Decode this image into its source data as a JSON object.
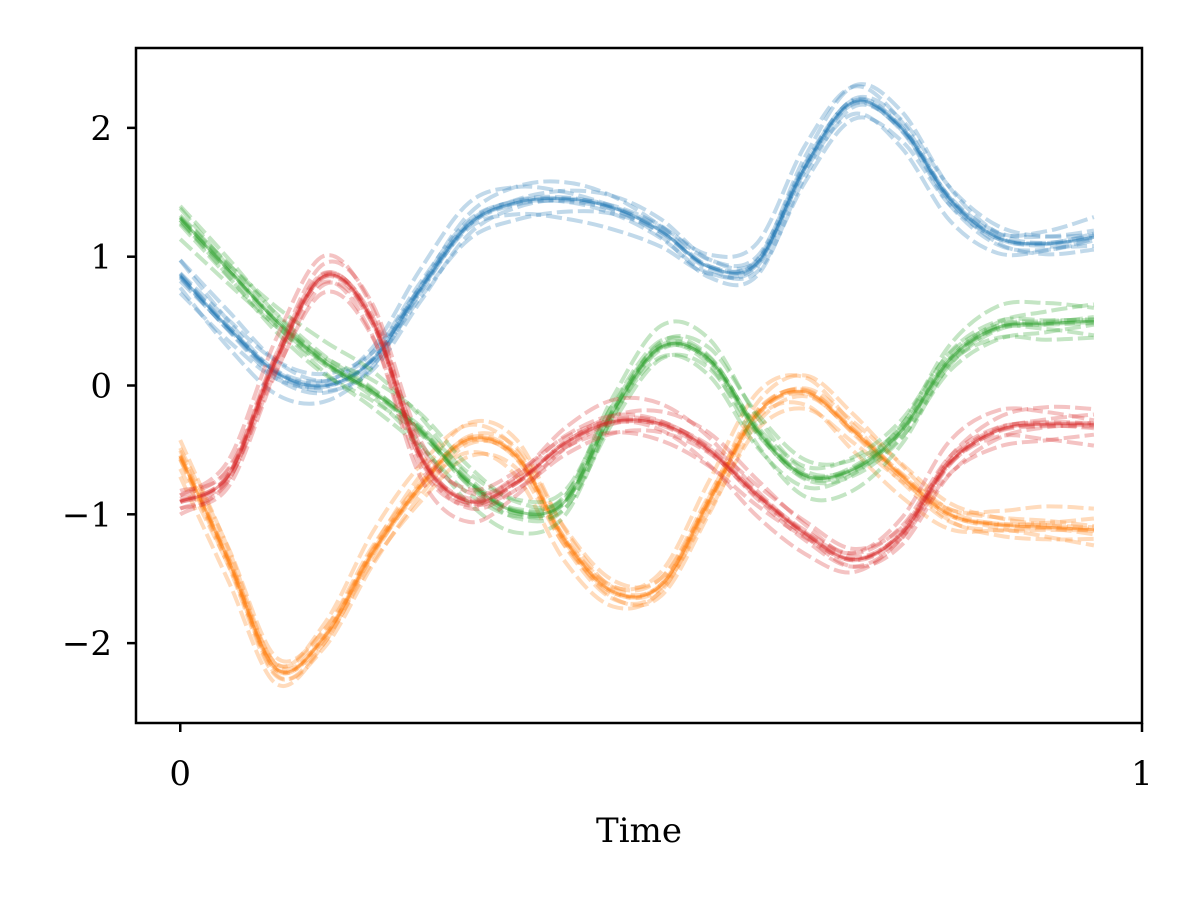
{
  "chart_data": {
    "type": "line",
    "title": "",
    "xlabel": "Time",
    "ylabel": "",
    "xlim": [
      -0.046,
      1.0
    ],
    "ylim": [
      -2.62,
      2.62
    ],
    "x_ticks": [
      0,
      1
    ],
    "x_tick_labels": [
      "0",
      "1"
    ],
    "y_ticks": [
      -2,
      -1,
      0,
      1,
      2
    ],
    "y_tick_labels": [
      "−2",
      "−1",
      "0",
      "1",
      "2"
    ],
    "grid": false,
    "legend": "none",
    "line_style": "dashed, translucent ensemble (about 10 samples per series)",
    "x": [
      0,
      0.05,
      0.1,
      0.15,
      0.2,
      0.25,
      0.3,
      0.35,
      0.4,
      0.45,
      0.5,
      0.55,
      0.6,
      0.65,
      0.7,
      0.75,
      0.8,
      0.85,
      0.9,
      0.95
    ],
    "series": [
      {
        "color": "#1f77b4",
        "values": [
          0.85,
          0.45,
          0.1,
          0.0,
          0.2,
          0.75,
          1.25,
          1.42,
          1.45,
          1.38,
          1.2,
          0.92,
          0.95,
          1.7,
          2.2,
          2.0,
          1.45,
          1.15,
          1.1,
          1.15
        ]
      },
      {
        "color": "#ff7f0e",
        "values": [
          -0.55,
          -1.35,
          -2.2,
          -1.95,
          -1.3,
          -0.78,
          -0.42,
          -0.55,
          -1.2,
          -1.6,
          -1.55,
          -0.9,
          -0.22,
          -0.05,
          -0.35,
          -0.7,
          -1.0,
          -1.08,
          -1.1,
          -1.12
        ]
      },
      {
        "color": "#2ca02c",
        "values": [
          1.3,
          0.9,
          0.5,
          0.18,
          -0.05,
          -0.35,
          -0.75,
          -0.98,
          -0.9,
          -0.2,
          0.3,
          0.2,
          -0.35,
          -0.7,
          -0.65,
          -0.35,
          0.2,
          0.45,
          0.48,
          0.5
        ]
      },
      {
        "color": "#d62728",
        "values": [
          -0.9,
          -0.7,
          0.2,
          0.85,
          0.5,
          -0.55,
          -0.9,
          -0.75,
          -0.45,
          -0.28,
          -0.3,
          -0.5,
          -0.85,
          -1.15,
          -1.35,
          -1.15,
          -0.6,
          -0.35,
          -0.3,
          -0.3
        ]
      }
    ]
  }
}
